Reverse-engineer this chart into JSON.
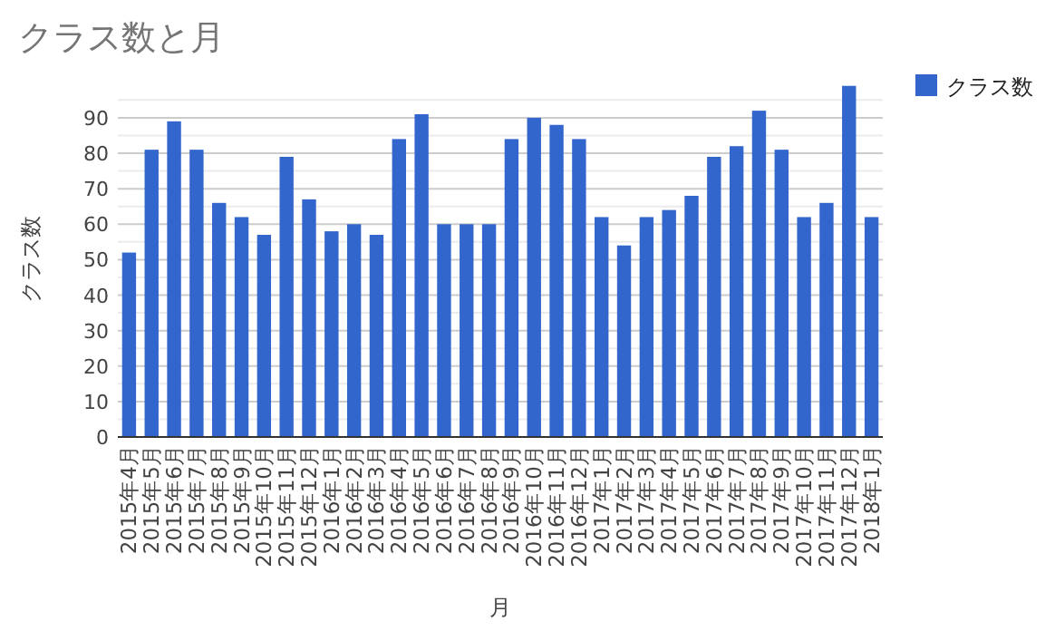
{
  "chart_data": {
    "type": "bar",
    "title": "クラス数と月",
    "xlabel": "月",
    "ylabel": "クラス数",
    "categories": [
      "2015年4月",
      "2015年5月",
      "2015年6月",
      "2015年7月",
      "2015年8月",
      "2015年9月",
      "2015年10月",
      "2015年11月",
      "2015年12月",
      "2016年1月",
      "2016年2月",
      "2016年3月",
      "2016年4月",
      "2016年5月",
      "2016年6月",
      "2016年7月",
      "2016年8月",
      "2016年9月",
      "2016年10月",
      "2016年11月",
      "2016年12月",
      "2017年1月",
      "2017年2月",
      "2017年3月",
      "2017年4月",
      "2017年5月",
      "2017年6月",
      "2017年7月",
      "2017年8月",
      "2017年9月",
      "2017年10月",
      "2017年11月",
      "2017年12月",
      "2018年1月"
    ],
    "series": [
      {
        "name": "クラス数",
        "color": "#3366cc",
        "values": [
          52,
          81,
          89,
          81,
          66,
          62,
          57,
          79,
          67,
          58,
          60,
          57,
          84,
          91,
          60,
          60,
          60,
          84,
          90,
          88,
          84,
          62,
          54,
          62,
          64,
          68,
          79,
          82,
          92,
          81,
          62,
          66,
          99,
          62
        ]
      }
    ],
    "ylim": [
      0,
      100
    ],
    "yticks": [
      0,
      {
        "value": 5,
        "label": null
      },
      10,
      {
        "value": 15,
        "label": null
      },
      20,
      {
        "value": 25,
        "label": null
      },
      30,
      {
        "value": 35,
        "label": null
      },
      40,
      {
        "value": 45,
        "label": null
      },
      50,
      {
        "value": 55,
        "label": null
      },
      60,
      {
        "value": 65,
        "label": null
      },
      70,
      {
        "value": 75,
        "label": null
      },
      80,
      {
        "value": 85,
        "label": null
      },
      90,
      {
        "value": 95,
        "label": null
      }
    ],
    "grid": "y",
    "legend": "top right"
  }
}
